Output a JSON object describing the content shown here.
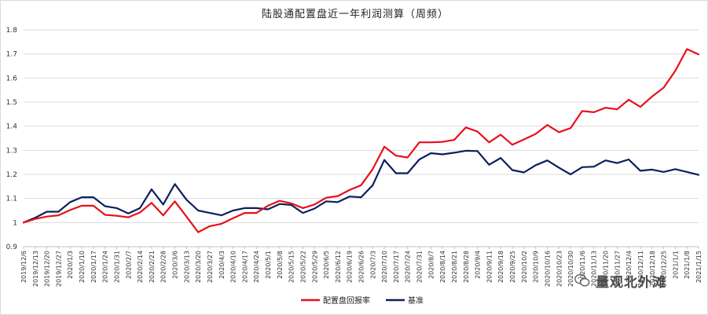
{
  "chart_data": {
    "type": "line",
    "title": "陆股通配置盘近一年利润测算（周频）",
    "xlabel": "",
    "ylabel": "",
    "ylim": [
      0.9,
      1.8
    ],
    "yticks": [
      "0.9",
      "1",
      "1.1",
      "1.2",
      "1.3",
      "1.4",
      "1.5",
      "1.6",
      "1.7",
      "1.8"
    ],
    "legend_position": "bottom",
    "categories": [
      "2019/12/6",
      "2019/12/13",
      "2019/12/20",
      "2019/12/27",
      "2020/1/3",
      "2020/1/10",
      "2020/1/17",
      "2020/1/24",
      "2020/1/31",
      "2020/2/7",
      "2020/2/14",
      "2020/2/21",
      "2020/2/28",
      "2020/3/6",
      "2020/3/13",
      "2020/3/20",
      "2020/3/27",
      "2020/4/3",
      "2020/4/10",
      "2020/4/17",
      "2020/4/24",
      "2020/5/1",
      "2020/5/8",
      "2020/5/15",
      "2020/5/22",
      "2020/5/29",
      "2020/6/5",
      "2020/6/12",
      "2020/6/19",
      "2020/6/26",
      "2020/7/3",
      "2020/7/10",
      "2020/7/17",
      "2020/7/24",
      "2020/7/31",
      "2020/8/7",
      "2020/8/14",
      "2020/8/21",
      "2020/8/28",
      "2020/9/4",
      "2020/9/11",
      "2020/9/18",
      "2020/9/25",
      "2020/10/2",
      "2020/10/9",
      "2020/10/16",
      "2020/10/23",
      "2020/10/30",
      "2020/11/6",
      "2020/11/13",
      "2020/11/20",
      "2020/11/27",
      "2020/12/4",
      "2020/12/11",
      "2020/12/18",
      "2020/12/25",
      "2021/1/1",
      "2021/1/8",
      "2021/1/15"
    ],
    "series": [
      {
        "name": "配置盘回报率",
        "color": "#e8101a",
        "values": [
          1.0,
          1.015,
          1.025,
          1.03,
          1.052,
          1.07,
          1.07,
          1.032,
          1.028,
          1.022,
          1.042,
          1.082,
          1.03,
          1.088,
          1.025,
          0.96,
          0.985,
          0.995,
          1.018,
          1.04,
          1.04,
          1.07,
          1.09,
          1.08,
          1.06,
          1.075,
          1.103,
          1.11,
          1.135,
          1.155,
          1.222,
          1.315,
          1.278,
          1.27,
          1.333,
          1.333,
          1.335,
          1.343,
          1.395,
          1.378,
          1.333,
          1.365,
          1.323,
          1.345,
          1.368,
          1.405,
          1.375,
          1.392,
          1.463,
          1.458,
          1.477,
          1.47,
          1.51,
          1.48,
          1.523,
          1.56,
          1.63,
          1.72,
          1.698
        ]
      },
      {
        "name": "基准",
        "color": "#0c1f5e",
        "values": [
          1.0,
          1.02,
          1.045,
          1.045,
          1.085,
          1.105,
          1.105,
          1.068,
          1.06,
          1.038,
          1.06,
          1.138,
          1.075,
          1.16,
          1.095,
          1.05,
          1.04,
          1.03,
          1.05,
          1.06,
          1.06,
          1.055,
          1.077,
          1.073,
          1.04,
          1.058,
          1.088,
          1.085,
          1.108,
          1.105,
          1.155,
          1.26,
          1.205,
          1.205,
          1.262,
          1.288,
          1.283,
          1.29,
          1.298,
          1.297,
          1.24,
          1.268,
          1.218,
          1.208,
          1.238,
          1.258,
          1.228,
          1.2,
          1.23,
          1.232,
          1.258,
          1.247,
          1.262,
          1.215,
          1.22,
          1.21,
          1.222,
          1.21,
          1.198
        ]
      }
    ]
  },
  "watermark": {
    "text": "量观北外滩",
    "icon": "wechat-icon"
  }
}
